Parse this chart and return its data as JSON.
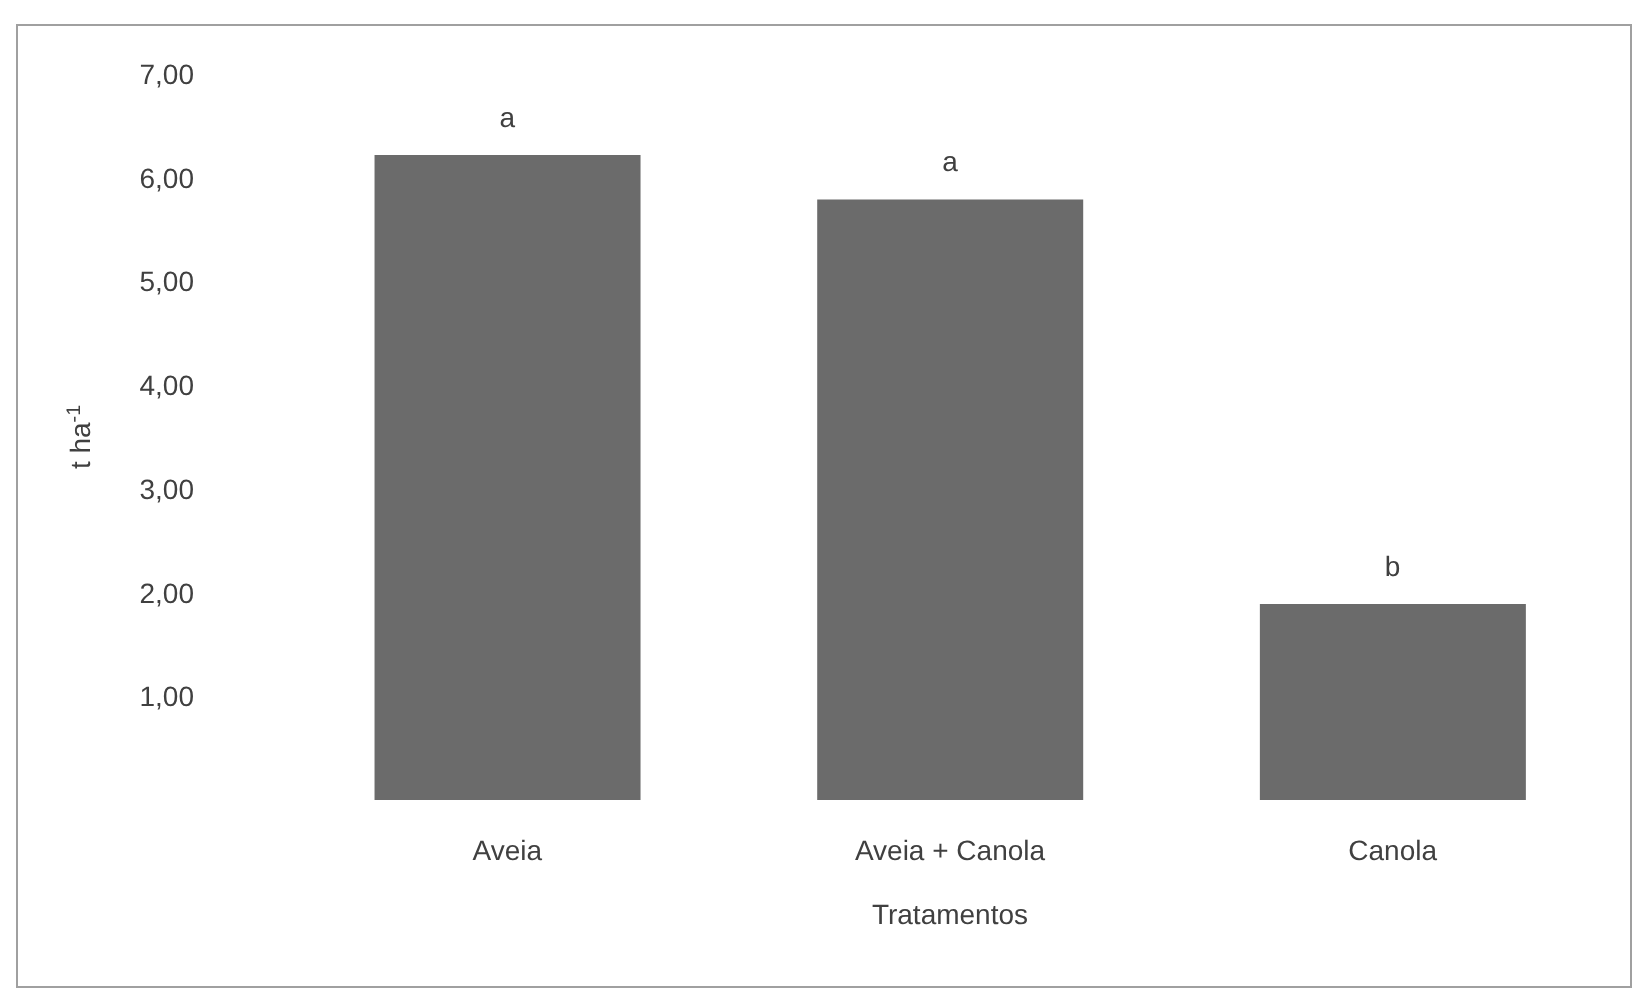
{
  "chart_data": {
    "type": "bar",
    "xlabel": "Tratamentos",
    "ylabel": "t ha$^{-1}$",
    "categories": [
      "Aveia",
      "Aveia + Canola",
      "Canola"
    ],
    "values": [
      6.22,
      5.79,
      1.89
    ],
    "color": "#6b6b6b",
    "ylim": [
      0,
      7
    ],
    "yticks": [
      {
        "value": 1,
        "label": "1,00"
      },
      {
        "value": 2,
        "label": "2,00"
      },
      {
        "value": 3,
        "label": "3,00"
      },
      {
        "value": 4,
        "label": "4,00"
      },
      {
        "value": 5,
        "label": "5,00"
      },
      {
        "value": 6,
        "label": "6,00"
      },
      {
        "value": 7,
        "label": "7,00"
      }
    ],
    "annotations": [
      {
        "text": "a",
        "x": "Aveia",
        "y": 6.22
      },
      {
        "text": "a",
        "x": "Aveia + Canola",
        "y": 5.79
      },
      {
        "text": "b",
        "x": "Canola",
        "y": 1.89
      }
    ],
    "grid": false,
    "legend": false
  }
}
